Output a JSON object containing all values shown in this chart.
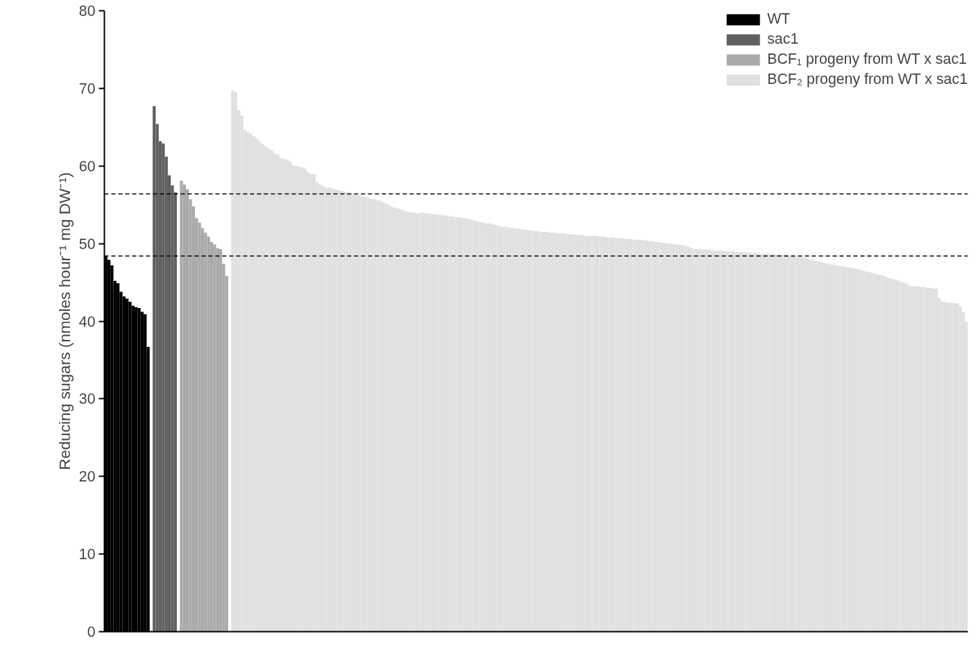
{
  "chart_data": {
    "type": "bar",
    "ylabel": "Reducing sugars (nmoles hour⁻¹ mg DW⁻¹)",
    "categories": [
      null,
      null,
      null,
      null,
      null,
      null,
      null,
      null,
      null,
      null,
      null,
      null,
      null,
      null,
      null,
      null,
      null,
      null,
      null,
      null,
      null,
      null,
      null,
      null,
      null,
      null,
      null,
      null,
      null,
      null,
      null,
      null,
      null,
      null,
      null,
      null,
      null,
      null,
      null,
      null,
      null,
      null,
      null,
      null,
      null,
      null,
      null,
      null,
      null,
      null,
      null,
      null,
      null,
      null,
      null,
      null,
      null,
      null,
      null,
      null,
      null,
      null,
      null,
      null,
      null,
      null,
      null,
      null,
      null,
      null,
      null,
      null,
      null,
      null,
      null,
      null,
      null,
      null,
      null,
      null,
      null,
      null,
      null,
      null,
      null,
      null,
      null,
      null,
      null,
      null,
      null,
      null,
      null,
      null,
      null,
      null,
      null,
      null,
      null,
      null,
      null,
      null,
      null,
      null,
      null,
      null,
      null,
      null,
      null,
      null,
      null,
      null,
      null,
      null,
      null,
      null,
      null,
      null,
      null,
      null,
      null,
      null,
      null,
      null,
      null,
      null,
      null,
      null,
      null,
      null,
      null,
      null,
      null,
      null,
      null,
      null,
      null,
      null,
      null,
      null,
      null,
      null,
      null,
      null,
      null,
      null,
      null,
      null,
      null,
      null,
      null,
      null,
      null,
      null,
      null,
      null,
      null,
      null,
      null,
      null,
      null,
      null,
      null,
      null,
      null,
      null,
      null,
      null,
      null,
      null,
      null,
      null,
      null,
      null,
      null,
      null,
      null,
      null,
      null,
      null,
      null,
      null,
      null,
      null,
      null,
      null,
      null,
      null,
      null,
      null,
      null,
      null,
      null,
      null,
      null,
      null,
      null,
      null,
      null,
      null,
      null,
      null,
      null,
      null,
      null,
      null,
      null,
      null,
      null,
      null,
      null,
      null,
      null,
      null,
      null,
      null,
      null,
      null,
      null,
      null,
      null,
      null,
      null,
      null,
      null,
      null,
      null,
      null,
      null,
      null,
      null,
      null,
      null,
      null,
      null,
      null,
      null,
      null,
      null,
      null,
      null,
      null,
      null,
      null,
      null,
      null,
      null,
      null,
      null,
      null,
      null,
      null,
      null,
      null,
      null,
      null,
      null,
      null,
      null,
      null,
      null,
      null,
      null,
      null,
      null,
      null,
      null,
      null,
      null,
      null,
      null,
      null,
      null,
      null,
      null,
      null,
      null,
      null,
      null,
      null,
      null,
      null,
      null,
      null,
      null,
      null
    ],
    "series": [
      {
        "name": "WT",
        "color": "#000000",
        "values": [
          48.4,
          47.9,
          47.2,
          45.2,
          44.9,
          43.8,
          43.2,
          42.9,
          42.5,
          42.0,
          41.8,
          41.7,
          41.2,
          40.9,
          36.7,
          null,
          null,
          null,
          null,
          null,
          null,
          null,
          null,
          null,
          null,
          null,
          null,
          null,
          null,
          null,
          null,
          null,
          null,
          null,
          null,
          null,
          null,
          null,
          null,
          null,
          null,
          null,
          null,
          null,
          null,
          null,
          null,
          null,
          null,
          null,
          null,
          null,
          null,
          null,
          null,
          null,
          null,
          null,
          null,
          null,
          null,
          null,
          null,
          null,
          null,
          null,
          null,
          null,
          null,
          null,
          null,
          null,
          null,
          null,
          null,
          null,
          null,
          null,
          null,
          null,
          null,
          null,
          null,
          null,
          null,
          null,
          null,
          null,
          null,
          null,
          null,
          null,
          null,
          null,
          null,
          null,
          null,
          null,
          null,
          null,
          null,
          null,
          null,
          null,
          null,
          null,
          null,
          null,
          null,
          null,
          null,
          null,
          null,
          null,
          null,
          null,
          null,
          null,
          null,
          null,
          null,
          null,
          null,
          null,
          null,
          null,
          null,
          null,
          null,
          null,
          null,
          null,
          null,
          null,
          null,
          null,
          null,
          null,
          null,
          null,
          null,
          null,
          null,
          null,
          null,
          null,
          null,
          null,
          null,
          null,
          null,
          null,
          null,
          null,
          null,
          null,
          null,
          null,
          null,
          null,
          null,
          null,
          null,
          null,
          null,
          null,
          null,
          null,
          null,
          null,
          null,
          null,
          null,
          null,
          null,
          null,
          null,
          null,
          null,
          null,
          null,
          null,
          null,
          null,
          null,
          null,
          null,
          null,
          null,
          null,
          null,
          null,
          null,
          null,
          null,
          null,
          null,
          null,
          null,
          null,
          null,
          null,
          null,
          null,
          null,
          null,
          null,
          null,
          null,
          null,
          null,
          null,
          null,
          null,
          null,
          null,
          null,
          null,
          null,
          null,
          null,
          null,
          null,
          null,
          null,
          null,
          null,
          null,
          null,
          null,
          null,
          null,
          null,
          null,
          null,
          null,
          null,
          null,
          null,
          null,
          null,
          null,
          null,
          null,
          null,
          null,
          null,
          null,
          null,
          null,
          null,
          null,
          null,
          null,
          null,
          null,
          null,
          null,
          null,
          null,
          null,
          null,
          null,
          null,
          null,
          null,
          null,
          null,
          null,
          null,
          null,
          null,
          null,
          null,
          null,
          null,
          null,
          null,
          null,
          null,
          null,
          null,
          null,
          null,
          null,
          null
        ]
      },
      {
        "name": "sac1",
        "color": "#606060",
        "values": [
          null,
          null,
          null,
          null,
          null,
          null,
          null,
          null,
          null,
          null,
          null,
          null,
          null,
          null,
          null,
          null,
          67.7,
          65.4,
          63.2,
          62.9,
          61.2,
          58.8,
          57.5,
          56.6,
          null,
          null,
          null,
          null,
          null,
          null,
          null,
          null,
          null,
          null,
          null,
          null,
          null,
          null,
          null,
          null,
          null,
          null,
          null,
          null,
          null,
          null,
          null,
          null,
          null,
          null,
          null,
          null,
          null,
          null,
          null,
          null,
          null,
          null,
          null,
          null,
          null,
          null,
          null,
          null,
          null,
          null,
          null,
          null,
          null,
          null,
          null,
          null,
          null,
          null,
          null,
          null,
          null,
          null,
          null,
          null,
          null,
          null,
          null,
          null,
          null,
          null,
          null,
          null,
          null,
          null,
          null,
          null,
          null,
          null,
          null,
          null,
          null,
          null,
          null,
          null,
          null,
          null,
          null,
          null,
          null,
          null,
          null,
          null,
          null,
          null,
          null,
          null,
          null,
          null,
          null,
          null,
          null,
          null,
          null,
          null,
          null,
          null,
          null,
          null,
          null,
          null,
          null,
          null,
          null,
          null,
          null,
          null,
          null,
          null,
          null,
          null,
          null,
          null,
          null,
          null,
          null,
          null,
          null,
          null,
          null,
          null,
          null,
          null,
          null,
          null,
          null,
          null,
          null,
          null,
          null,
          null,
          null,
          null,
          null,
          null,
          null,
          null,
          null,
          null,
          null,
          null,
          null,
          null,
          null,
          null,
          null,
          null,
          null,
          null,
          null,
          null,
          null,
          null,
          null,
          null,
          null,
          null,
          null,
          null,
          null,
          null,
          null,
          null,
          null,
          null,
          null,
          null,
          null,
          null,
          null,
          null,
          null,
          null,
          null,
          null,
          null,
          null,
          null,
          null,
          null,
          null,
          null,
          null,
          null,
          null,
          null,
          null,
          null,
          null,
          null,
          null,
          null,
          null,
          null,
          null,
          null,
          null,
          null,
          null,
          null,
          null,
          null,
          null,
          null,
          null,
          null,
          null,
          null,
          null,
          null,
          null,
          null,
          null,
          null,
          null,
          null,
          null,
          null,
          null,
          null,
          null,
          null,
          null,
          null,
          null,
          null,
          null,
          null,
          null,
          null,
          null,
          null,
          null,
          null,
          null,
          null,
          null,
          null,
          null,
          null,
          null,
          null,
          null,
          null,
          null,
          null,
          null,
          null,
          null,
          null,
          null,
          null,
          null,
          null,
          null,
          null,
          null,
          null,
          null,
          null,
          null
        ]
      },
      {
        "name": "BCF₁ progeny from WT x sac1",
        "color": "#aaaaaa",
        "values": [
          null,
          null,
          null,
          null,
          null,
          null,
          null,
          null,
          null,
          null,
          null,
          null,
          null,
          null,
          null,
          null,
          null,
          null,
          null,
          null,
          null,
          null,
          null,
          null,
          null,
          58.1,
          57.6,
          57.0,
          55.7,
          54.8,
          53.3,
          52.7,
          52.0,
          51.4,
          50.9,
          50.2,
          49.9,
          49.4,
          49.3,
          47.4,
          45.8,
          null,
          null,
          null,
          null,
          null,
          null,
          null,
          null,
          null,
          null,
          null,
          null,
          null,
          null,
          null,
          null,
          null,
          null,
          null,
          null,
          null,
          null,
          null,
          null,
          null,
          null,
          null,
          null,
          null,
          null,
          null,
          null,
          null,
          null,
          null,
          null,
          null,
          null,
          null,
          null,
          null,
          null,
          null,
          null,
          null,
          null,
          null,
          null,
          null,
          null,
          null,
          null,
          null,
          null,
          null,
          null,
          null,
          null,
          null,
          null,
          null,
          null,
          null,
          null,
          null,
          null,
          null,
          null,
          null,
          null,
          null,
          null,
          null,
          null,
          null,
          null,
          null,
          null,
          null,
          null,
          null,
          null,
          null,
          null,
          null,
          null,
          null,
          null,
          null,
          null,
          null,
          null,
          null,
          null,
          null,
          null,
          null,
          null,
          null,
          null,
          null,
          null,
          null,
          null,
          null,
          null,
          null,
          null,
          null,
          null,
          null,
          null,
          null,
          null,
          null,
          null,
          null,
          null,
          null,
          null,
          null,
          null,
          null,
          null,
          null,
          null,
          null,
          null,
          null,
          null,
          null,
          null,
          null,
          null,
          null,
          null,
          null,
          null,
          null,
          null,
          null,
          null,
          null,
          null,
          null,
          null,
          null,
          null,
          null,
          null,
          null,
          null,
          null,
          null,
          null,
          null,
          null,
          null,
          null,
          null,
          null,
          null,
          null,
          null,
          null,
          null,
          null,
          null,
          null,
          null,
          null,
          null,
          null,
          null,
          null,
          null,
          null,
          null,
          null,
          null,
          null,
          null,
          null,
          null,
          null,
          null,
          null,
          null,
          null,
          null,
          null,
          null,
          null,
          null,
          null,
          null,
          null,
          null,
          null,
          null,
          null,
          null,
          null,
          null,
          null,
          null,
          null,
          null,
          null,
          null,
          null,
          null,
          null,
          null,
          null,
          null,
          null,
          null,
          null,
          null,
          null,
          null,
          null,
          null,
          null,
          null,
          null,
          null,
          null,
          null,
          null,
          null,
          null,
          null,
          null,
          null,
          null,
          null,
          null,
          null,
          null,
          null,
          null,
          null,
          null
        ]
      },
      {
        "name": "BCF₂ progeny from WT x sac1",
        "color": "#e0e0e0",
        "values": [
          null,
          null,
          null,
          null,
          null,
          null,
          null,
          null,
          null,
          null,
          null,
          null,
          null,
          null,
          null,
          null,
          null,
          null,
          null,
          null,
          null,
          null,
          null,
          null,
          null,
          null,
          null,
          null,
          null,
          null,
          null,
          null,
          null,
          null,
          null,
          null,
          null,
          null,
          null,
          null,
          null,
          null,
          69.7,
          69.5,
          67.2,
          66.5,
          64.6,
          64.4,
          64.2,
          63.8,
          63.5,
          63.2,
          62.8,
          62.5,
          62.2,
          62.0,
          61.6,
          61.5,
          61.0,
          60.9,
          60.8,
          60.6,
          60.1,
          60.0,
          59.9,
          59.8,
          59.7,
          59.2,
          59.0,
          58.9,
          57.9,
          57.6,
          57.4,
          57.2,
          57.2,
          57.1,
          57.0,
          56.9,
          56.8,
          56.7,
          56.6,
          56.5,
          56.4,
          56.3,
          56.2,
          56.1,
          56.0,
          55.9,
          55.8,
          55.7,
          55.6,
          55.5,
          55.3,
          55.1,
          54.9,
          54.7,
          54.6,
          54.5,
          54.4,
          54.2,
          54.1,
          54.0,
          54.0,
          53.9,
          54.0,
          54.0,
          53.9,
          53.9,
          53.8,
          53.8,
          53.7,
          53.7,
          53.6,
          53.6,
          53.5,
          53.5,
          53.4,
          53.4,
          53.3,
          53.3,
          53.2,
          53.1,
          53.0,
          52.9,
          52.8,
          52.7,
          52.6,
          52.6,
          52.5,
          52.4,
          52.3,
          52.2,
          52.2,
          52.1,
          52.0,
          52.0,
          51.9,
          51.9,
          51.8,
          51.8,
          51.7,
          51.7,
          51.6,
          51.6,
          51.5,
          51.5,
          51.5,
          51.4,
          51.4,
          51.4,
          51.3,
          51.3,
          51.3,
          51.2,
          51.2,
          51.2,
          51.1,
          51.1,
          51.1,
          51.0,
          51.0,
          51.0,
          51.0,
          50.9,
          50.9,
          50.9,
          50.8,
          50.8,
          50.8,
          50.7,
          50.7,
          50.7,
          50.6,
          50.6,
          50.6,
          50.5,
          50.5,
          50.5,
          50.4,
          50.4,
          50.3,
          50.3,
          50.2,
          50.2,
          50.1,
          50.1,
          50.0,
          50.0,
          49.9,
          49.9,
          49.8,
          49.8,
          49.7,
          49.6,
          49.4,
          49.3,
          49.3,
          49.3,
          49.2,
          49.2,
          49.2,
          49.1,
          49.1,
          49.1,
          49.1,
          49.0,
          49.0,
          49.0,
          49.0,
          48.9,
          48.9,
          48.9,
          48.9,
          48.8,
          48.8,
          48.8,
          48.8,
          48.7,
          48.7,
          48.7,
          48.7,
          48.7,
          48.6,
          48.6,
          48.6,
          48.6,
          48.5,
          48.4,
          48.4,
          48.3,
          48.3,
          48.2,
          48.1,
          48.0,
          47.9,
          47.8,
          47.7,
          47.6,
          47.5,
          47.4,
          47.3,
          47.3,
          47.2,
          47.1,
          47.1,
          47.0,
          46.9,
          46.9,
          46.8,
          46.7,
          46.6,
          46.5,
          46.4,
          46.3,
          46.2,
          46.1,
          46.0,
          45.9,
          45.8,
          45.6,
          45.5,
          45.4,
          45.3,
          45.1,
          45.0,
          44.9,
          44.6,
          44.5,
          44.5,
          44.5,
          44.4,
          44.4,
          44.3,
          44.3,
          44.2,
          44.2,
          43.0,
          42.5,
          42.5,
          42.4,
          42.4,
          42.3,
          42.3,
          41.9,
          41.2,
          39.9
        ]
      }
    ],
    "ylim": [
      0,
      80
    ],
    "yticks": [
      0,
      10,
      20,
      30,
      40,
      50,
      60,
      70,
      80
    ],
    "ref_lines": [
      {
        "axis": "y",
        "value": 56.4,
        "label": null,
        "color": "#000000",
        "line_style": "dashed"
      },
      {
        "axis": "y",
        "value": 48.4,
        "label": null,
        "color": "#000000",
        "line_style": "dashed"
      }
    ],
    "grid": false,
    "legend": "top right",
    "tick_labels": "y"
  }
}
